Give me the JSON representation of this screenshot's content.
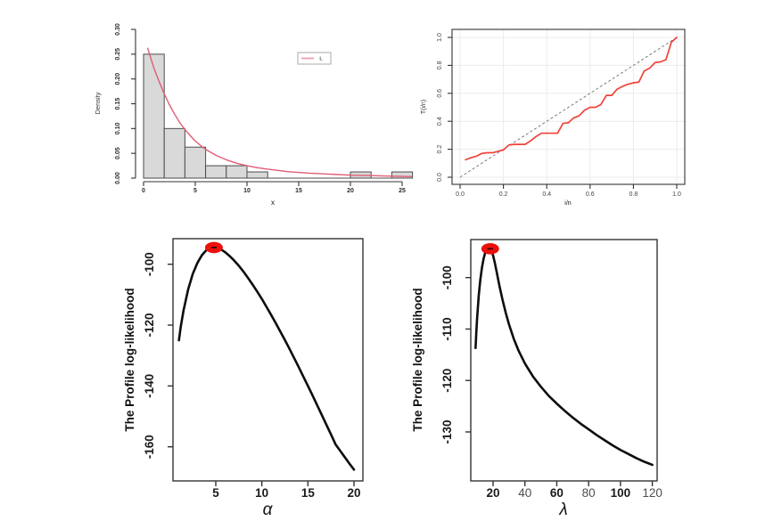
{
  "figure": {
    "description": "Four-panel R statistics figure: histogram with fitted density, TTT plot, and two profile log-likelihood curves",
    "background": "#ffffff"
  },
  "chart_data": [
    {
      "id": "histogram-fitted-density",
      "type": "bar",
      "title": "",
      "xlabel": "x",
      "ylabel": "Density",
      "xlim": [
        0,
        26
      ],
      "ylim": [
        0,
        0.3054
      ],
      "x_ticks": [
        {
          "v": 0,
          "label": "0"
        },
        {
          "v": 5,
          "label": "5"
        },
        {
          "v": 10,
          "label": "10"
        },
        {
          "v": 15,
          "label": "15"
        },
        {
          "v": 20,
          "label": "20"
        },
        {
          "v": 25,
          "label": "25"
        }
      ],
      "y_ticks": [
        {
          "v": 0.0,
          "label": "0.00"
        },
        {
          "v": 0.05,
          "label": "0.05"
        },
        {
          "v": 0.1,
          "label": "0.10"
        },
        {
          "v": 0.15,
          "label": "0.15"
        },
        {
          "v": 0.2,
          "label": "0.20"
        },
        {
          "v": 0.25,
          "label": "0.25"
        },
        {
          "v": 0.3,
          "label": "0.30"
        }
      ],
      "bins": [
        {
          "x0": 0,
          "x1": 2,
          "density": 0.25
        },
        {
          "x0": 2,
          "x1": 4,
          "density": 0.1
        },
        {
          "x0": 4,
          "x1": 6,
          "density": 0.0625
        },
        {
          "x0": 6,
          "x1": 8,
          "density": 0.025
        },
        {
          "x0": 8,
          "x1": 10,
          "density": 0.025
        },
        {
          "x0": 10,
          "x1": 12,
          "density": 0.0125
        },
        {
          "x0": 12,
          "x1": 14,
          "density": 0
        },
        {
          "x0": 14,
          "x1": 16,
          "density": 0
        },
        {
          "x0": 16,
          "x1": 18,
          "density": 0
        },
        {
          "x0": 18,
          "x1": 20,
          "density": 0
        },
        {
          "x0": 20,
          "x1": 22,
          "density": 0.0125
        },
        {
          "x0": 22,
          "x1": 24,
          "density": 0
        },
        {
          "x0": 24,
          "x1": 26,
          "density": 0.0125
        }
      ],
      "bar_fill": "#d9d9d9",
      "bar_stroke": "#4d4d4d",
      "curve": {
        "name": "fitted-density-curve",
        "color": "#e05c74",
        "x": [
          0.4,
          1,
          1.5,
          2,
          2.5,
          3,
          3.5,
          4,
          4.5,
          5,
          5.5,
          6,
          7,
          8,
          9,
          10,
          11,
          12,
          14,
          16,
          18,
          20,
          22,
          24,
          25.9
        ],
        "y": [
          0.262,
          0.222,
          0.195,
          0.17,
          0.148,
          0.129,
          0.112,
          0.098,
          0.086,
          0.075,
          0.066,
          0.058,
          0.046,
          0.037,
          0.03,
          0.025,
          0.021,
          0.018,
          0.013,
          0.01,
          0.008,
          0.006,
          0.005,
          0.004,
          0.003
        ]
      },
      "legend": {
        "label": "L",
        "line_color": "#ef9fb0",
        "border_color": "#aaaaaa",
        "position": "top-right-inside"
      }
    },
    {
      "id": "ttt-plot",
      "type": "line",
      "title": "",
      "xlabel": "i/n",
      "ylabel": "T(i/n)",
      "xlim": [
        0,
        1
      ],
      "ylim": [
        0,
        1
      ],
      "grid": true,
      "grid_color": "#ebebeb",
      "x_ticks": [
        {
          "v": 0.0,
          "label": "0.0"
        },
        {
          "v": 0.2,
          "label": "0.2"
        },
        {
          "v": 0.4,
          "label": "0.4"
        },
        {
          "v": 0.6,
          "label": "0.6"
        },
        {
          "v": 0.8,
          "label": "0.8"
        },
        {
          "v": 1.0,
          "label": "1.0"
        }
      ],
      "y_ticks": [
        {
          "v": 0.0,
          "label": "0.0"
        },
        {
          "v": 0.2,
          "label": "0.2"
        },
        {
          "v": 0.4,
          "label": "0.4"
        },
        {
          "v": 0.6,
          "label": "0.6"
        },
        {
          "v": 0.8,
          "label": "0.8"
        },
        {
          "v": 1.0,
          "label": "1.0"
        }
      ],
      "reference_line": {
        "name": "diagonal-reference",
        "from": [
          0,
          0
        ],
        "to": [
          1,
          1
        ],
        "style": "dashed",
        "color": "#7a7a7a"
      },
      "series": [
        {
          "name": "ttt-transform-line",
          "color": "#ef423b",
          "width": 1.7,
          "x": [
            0.025,
            0.05,
            0.075,
            0.1,
            0.125,
            0.15,
            0.175,
            0.2,
            0.225,
            0.25,
            0.275,
            0.3,
            0.325,
            0.35,
            0.375,
            0.4,
            0.425,
            0.45,
            0.475,
            0.5,
            0.525,
            0.55,
            0.575,
            0.6,
            0.625,
            0.65,
            0.675,
            0.7,
            0.725,
            0.75,
            0.775,
            0.8,
            0.825,
            0.85,
            0.875,
            0.9,
            0.925,
            0.95,
            0.975,
            1.0
          ],
          "y": [
            0.125,
            0.14,
            0.15,
            0.17,
            0.175,
            0.175,
            0.185,
            0.195,
            0.23,
            0.235,
            0.235,
            0.235,
            0.26,
            0.29,
            0.315,
            0.315,
            0.315,
            0.315,
            0.385,
            0.39,
            0.425,
            0.44,
            0.48,
            0.5,
            0.5,
            0.52,
            0.585,
            0.585,
            0.63,
            0.65,
            0.665,
            0.675,
            0.68,
            0.76,
            0.78,
            0.82,
            0.825,
            0.84,
            0.965,
            1.0
          ]
        }
      ]
    },
    {
      "id": "profile-loglikelihood-alpha",
      "type": "line",
      "title": "",
      "xlabel": "α",
      "ylabel": "The Profile log-likelihood",
      "xlim": [
        0.3,
        21
      ],
      "ylim": [
        -171.2,
        -91.6
      ],
      "x_ticks": [
        {
          "v": 5,
          "label": "5",
          "bold": true
        },
        {
          "v": 10,
          "label": "10",
          "bold": true
        },
        {
          "v": 15,
          "label": "15",
          "bold": true
        },
        {
          "v": 20,
          "label": "20",
          "bold": true
        }
      ],
      "y_ticks": [
        {
          "v": -100,
          "label": "-100"
        },
        {
          "v": -120,
          "label": "-120"
        },
        {
          "v": -140,
          "label": "-140"
        },
        {
          "v": -160,
          "label": "-160"
        }
      ],
      "series": [
        {
          "name": "profile-loglikelihood-alpha-curve",
          "color": "#0d0d0d",
          "width": 2.6,
          "x": [
            1,
            1.2,
            1.5,
            2,
            2.5,
            3,
            3.5,
            4,
            4.4,
            4.8,
            5.2,
            5.6,
            6,
            6.5,
            7,
            7.5,
            8,
            8.5,
            9,
            9.5,
            10,
            10.5,
            11,
            11.5,
            12,
            12.5,
            13,
            13.5,
            14,
            14.5,
            15,
            15.5,
            16,
            16.5,
            17,
            17.5,
            18,
            18.5,
            19,
            19.5,
            20
          ],
          "y": [
            -125,
            -120.5,
            -115.2,
            -108.3,
            -103.2,
            -99.6,
            -97.0,
            -95.3,
            -94.6,
            -94.4,
            -94.6,
            -95.2,
            -96.0,
            -97.3,
            -98.8,
            -100.5,
            -102.4,
            -104.5,
            -106.7,
            -109.0,
            -111.4,
            -114.0,
            -116.6,
            -119.3,
            -122.1,
            -124.9,
            -127.8,
            -130.8,
            -133.8,
            -136.9,
            -140.0,
            -143.1,
            -146.3,
            -149.5,
            -152.7,
            -155.9,
            -159.2,
            -161.3,
            -163.4,
            -165.5,
            -167.5
          ]
        }
      ],
      "max_marker": {
        "name": "mle-alpha-marker",
        "x": 4.8,
        "y": -94.5,
        "color": "#ec100c"
      }
    },
    {
      "id": "profile-loglikelihood-lambda",
      "type": "line",
      "title": "",
      "xlabel": "λ",
      "ylabel": "The Profile log-likelihood",
      "xlim": [
        6,
        123
      ],
      "ylim": [
        -139.2,
        -92.7
      ],
      "x_ticks": [
        {
          "v": 20,
          "label": "20",
          "bold": true
        },
        {
          "v": 40,
          "label": "40",
          "bold": false
        },
        {
          "v": 60,
          "label": "60",
          "bold": true
        },
        {
          "v": 80,
          "label": "80",
          "bold": false
        },
        {
          "v": 100,
          "label": "100",
          "bold": true
        },
        {
          "v": 120,
          "label": "120",
          "bold": false
        }
      ],
      "y_ticks": [
        {
          "v": -100,
          "label": "-100"
        },
        {
          "v": -110,
          "label": "-110"
        },
        {
          "v": -120,
          "label": "-120"
        },
        {
          "v": -130,
          "label": "-130"
        }
      ],
      "series": [
        {
          "name": "profile-loglikelihood-lambda-curve",
          "color": "#0d0d0d",
          "width": 2.6,
          "x": [
            9,
            9.5,
            10,
            11,
            12,
            13,
            14,
            15,
            16,
            17,
            18,
            19,
            20,
            21,
            22,
            24,
            26,
            28,
            30,
            33,
            36,
            40,
            45,
            50,
            55,
            60,
            65,
            70,
            75,
            80,
            85,
            90,
            95,
            100,
            105,
            110,
            115,
            120
          ],
          "y": [
            -113.7,
            -110.5,
            -107.8,
            -103.5,
            -100.4,
            -98.1,
            -96.4,
            -95.2,
            -94.6,
            -94.3,
            -94.3,
            -94.8,
            -95.7,
            -97.0,
            -98.5,
            -101.6,
            -104.4,
            -106.9,
            -109.1,
            -111.9,
            -114.2,
            -116.7,
            -119.2,
            -121.2,
            -123.0,
            -124.5,
            -125.9,
            -127.2,
            -128.4,
            -129.5,
            -130.6,
            -131.6,
            -132.6,
            -133.5,
            -134.3,
            -135.1,
            -135.8,
            -136.4
          ]
        }
      ],
      "max_marker": {
        "name": "mle-lambda-marker",
        "x": 18.2,
        "y": -94.4,
        "color": "#ec100c"
      }
    }
  ]
}
